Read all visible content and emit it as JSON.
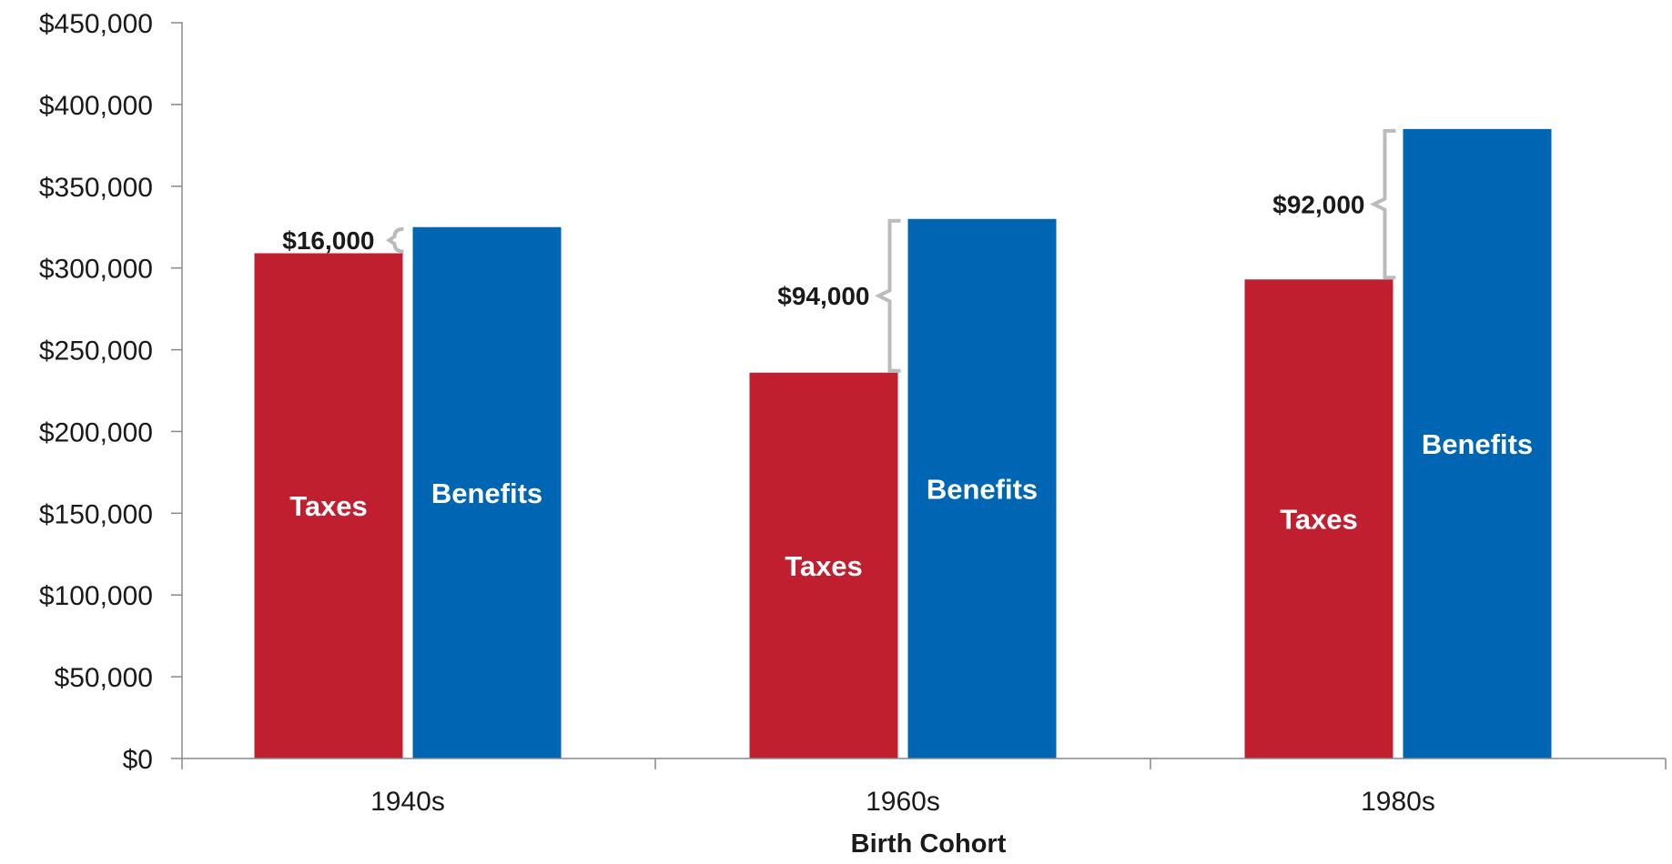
{
  "chart_data": {
    "type": "bar",
    "title": "",
    "xlabel": "Birth Cohort",
    "ylabel": "",
    "categories": [
      "1940s",
      "1960s",
      "1980s"
    ],
    "series": [
      {
        "name": "Taxes",
        "values": [
          309000,
          236000,
          293000
        ],
        "color": "#c01f2f"
      },
      {
        "name": "Benefits",
        "values": [
          325000,
          330000,
          385000
        ],
        "color": "#0066b3"
      }
    ],
    "ylim": [
      0,
      450000
    ],
    "yticks": [
      0,
      50000,
      100000,
      150000,
      200000,
      250000,
      300000,
      350000,
      400000,
      450000
    ],
    "ytick_labels": [
      "$0",
      "$50,000",
      "$100,000",
      "$150,000",
      "$200,000",
      "$250,000",
      "$300,000",
      "$350,000",
      "$400,000",
      "$450,000"
    ],
    "annotations": [
      {
        "category": "1940s",
        "text": "$16,000"
      },
      {
        "category": "1960s",
        "text": "$94,000"
      },
      {
        "category": "1980s",
        "text": "$92,000"
      }
    ],
    "grid": false,
    "legend": "none (labels inside bars)",
    "bracket_color": "#bbbbbb"
  }
}
